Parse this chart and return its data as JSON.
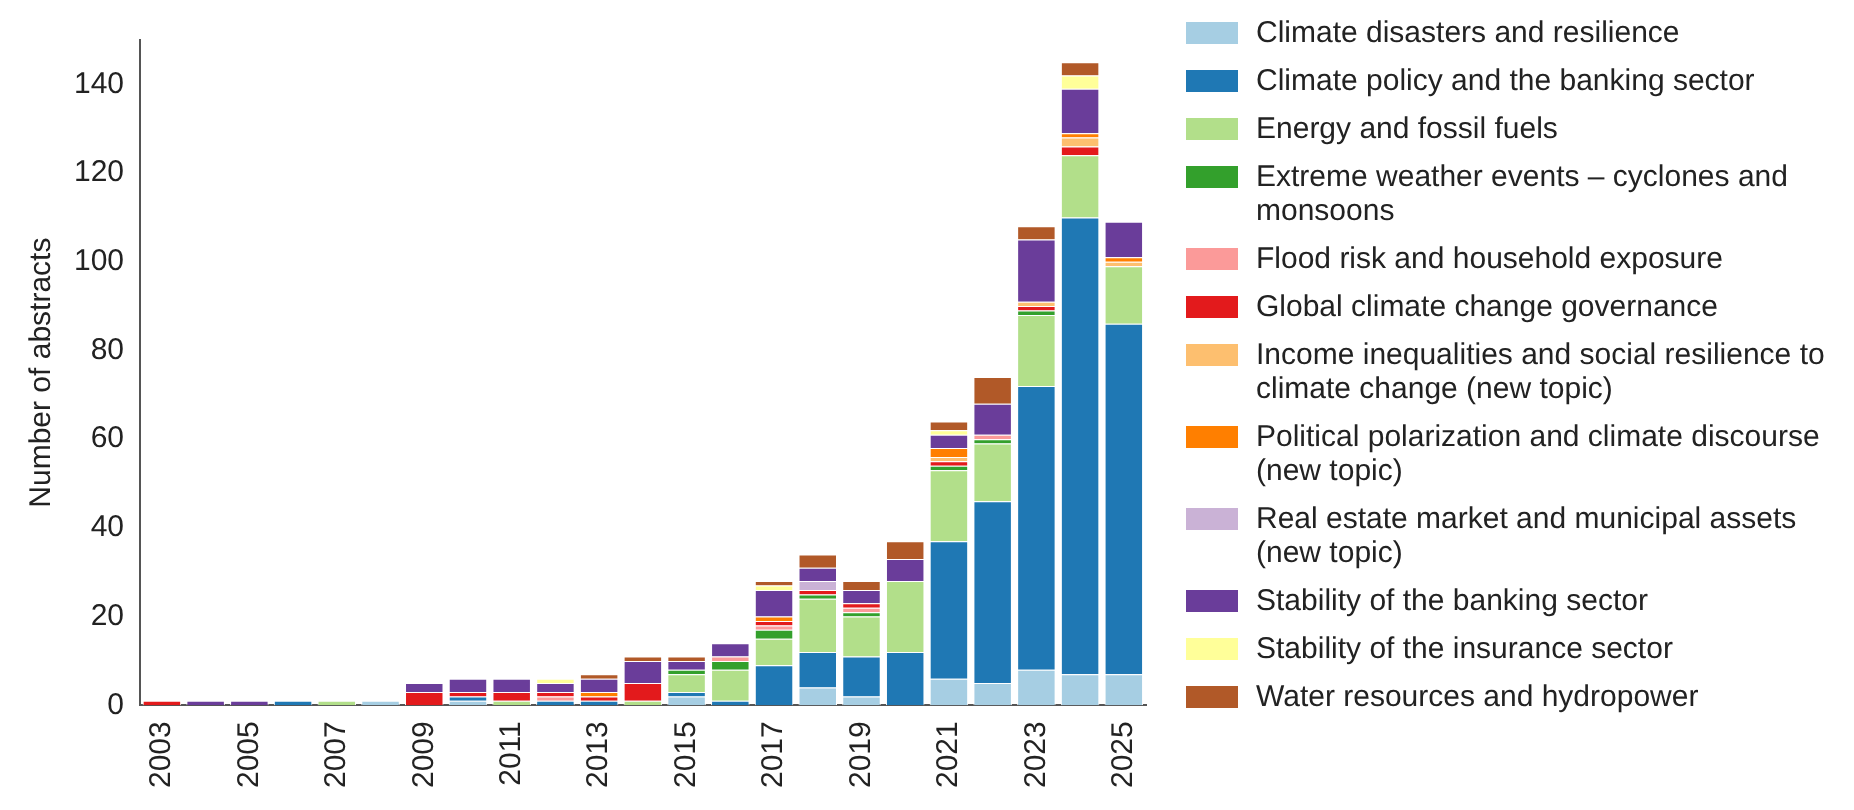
{
  "chart_data": {
    "type": "bar",
    "stacked": true,
    "ylabel": "Number of abstracts",
    "legend": "right",
    "grid": false,
    "categories": [
      "2003",
      null,
      "2005",
      null,
      "2007",
      null,
      "2009",
      null,
      "2011",
      null,
      "2013",
      null,
      "2015",
      null,
      "2017",
      null,
      "2019",
      null,
      "2021",
      null,
      "2023",
      null,
      "2025"
    ],
    "ylim": [
      0,
      150
    ],
    "yticks": [
      0,
      20,
      40,
      60,
      80,
      100,
      120,
      140
    ],
    "series": [
      {
        "name": "Climate disasters and resilience",
        "color": "#a6cee3",
        "values": [
          0,
          0,
          0,
          0,
          0,
          1,
          0,
          1,
          0,
          0,
          0,
          0,
          2,
          0,
          0,
          4,
          2,
          0,
          6,
          5,
          8,
          7,
          7
        ]
      },
      {
        "name": "Climate policy and the banking sector",
        "color": "#1f78b4",
        "values": [
          0,
          0,
          0,
          1,
          0,
          0,
          0,
          1,
          0,
          1,
          1,
          0,
          1,
          1,
          9,
          8,
          9,
          12,
          31,
          41,
          64,
          103,
          79
        ]
      },
      {
        "name": "Energy and fossil fuels",
        "color": "#b2df8a",
        "values": [
          0,
          0,
          0,
          0,
          1,
          0,
          0,
          0,
          1,
          0,
          0,
          1,
          4,
          7,
          6,
          12,
          9,
          16,
          16,
          13,
          16,
          14,
          13
        ]
      },
      {
        "name": "Extreme weather events – cyclones and monsoons",
        "color": "#33a02c",
        "values": [
          0,
          0,
          0,
          0,
          0,
          0,
          0,
          0,
          0,
          0,
          0,
          0,
          1,
          2,
          2,
          1,
          1,
          0,
          1,
          1,
          1,
          0,
          0
        ]
      },
      {
        "name": "Flood risk and household exposure",
        "color": "#fb9a99",
        "values": [
          0,
          0,
          0,
          0,
          0,
          0,
          0,
          0,
          0,
          1,
          0,
          0,
          0,
          1,
          1,
          0,
          1,
          0,
          0,
          1,
          0,
          0,
          0
        ]
      },
      {
        "name": "Global climate change governance",
        "color": "#e31a1c",
        "values": [
          1,
          0,
          0,
          0,
          0,
          0,
          3,
          1,
          2,
          1,
          1,
          4,
          0,
          0,
          1,
          1,
          1,
          0,
          1,
          0,
          1,
          2,
          0
        ]
      },
      {
        "name": "Income inequalities and social resilience to climate change (new topic)",
        "color": "#fdbf6f",
        "values": [
          0,
          0,
          0,
          0,
          0,
          0,
          0,
          0,
          0,
          0,
          0,
          0,
          0,
          0,
          0,
          0,
          0,
          0,
          1,
          0,
          1,
          2,
          1
        ]
      },
      {
        "name": "Political polarization and climate discourse (new topic)",
        "color": "#ff7f00",
        "values": [
          0,
          0,
          0,
          0,
          0,
          0,
          0,
          0,
          0,
          0,
          1,
          0,
          0,
          0,
          1,
          0,
          0,
          0,
          2,
          0,
          0,
          1,
          1
        ]
      },
      {
        "name": "Real estate market and municipal assets (new topic)",
        "color": "#cab2d6",
        "values": [
          0,
          0,
          0,
          0,
          0,
          0,
          0,
          0,
          0,
          0,
          0,
          0,
          0,
          0,
          0,
          2,
          0,
          0,
          0,
          0,
          0,
          0,
          0
        ]
      },
      {
        "name": "Stability of the banking sector",
        "color": "#6a3d9a",
        "values": [
          0,
          1,
          1,
          0,
          0,
          0,
          2,
          3,
          3,
          2,
          3,
          5,
          2,
          3,
          6,
          3,
          3,
          5,
          3,
          7,
          14,
          10,
          8
        ]
      },
      {
        "name": "Stability of the insurance sector",
        "color": "#ffff99",
        "values": [
          0,
          0,
          0,
          0,
          0,
          0,
          0,
          0,
          0,
          1,
          0,
          0,
          0,
          0,
          1,
          0,
          0,
          0,
          1,
          0,
          0,
          3,
          0
        ]
      },
      {
        "name": "Water resources and hydropower",
        "color": "#b15928",
        "values": [
          0,
          0,
          0,
          0,
          0,
          0,
          0,
          0,
          0,
          0,
          1,
          1,
          1,
          0,
          1,
          3,
          2,
          4,
          2,
          6,
          3,
          3,
          0
        ]
      }
    ]
  }
}
